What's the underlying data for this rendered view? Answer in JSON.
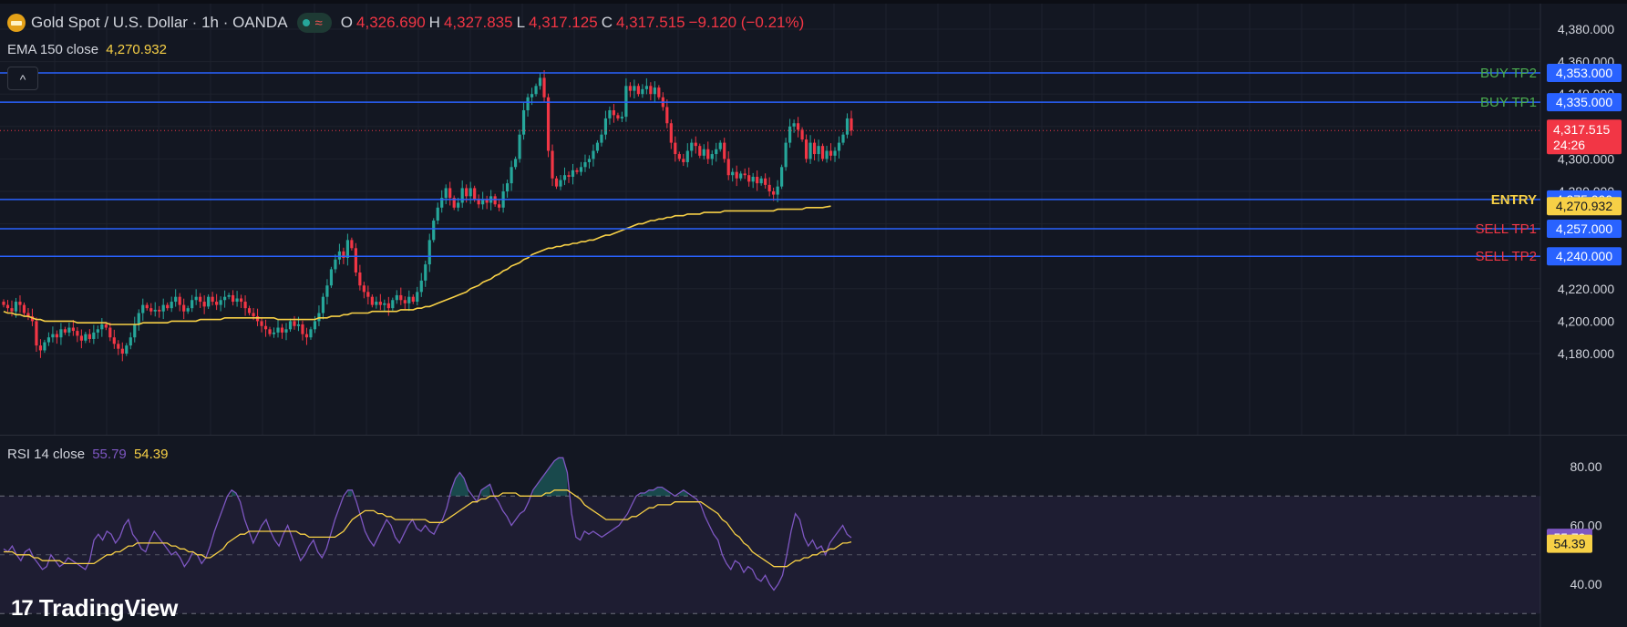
{
  "header": {
    "title": "Gold Spot / U.S. Dollar · 1h · OANDA",
    "market_icon": "wave-icon",
    "ohlc": [
      {
        "key": "O",
        "value": "4,326.690"
      },
      {
        "key": "H",
        "value": "4,327.835"
      },
      {
        "key": "L",
        "value": "4,317.125"
      },
      {
        "key": "C",
        "value": "4,317.515"
      }
    ],
    "change": "−9.120 (−0.21%)"
  },
  "ema": {
    "label": "EMA 150 close",
    "value": "4,270.932"
  },
  "collapse_icon": "chevron-up-icon",
  "rsi": {
    "label": "RSI 14 close",
    "value": "55.79",
    "ma_value": "54.39"
  },
  "watermark": "TradingView",
  "colors": {
    "background": "#131722",
    "up": "#26a69a",
    "down": "#f23645",
    "level_line": "#2962ff",
    "ema": "#f7d046",
    "rsi": "#7e57c2",
    "rsi_ma": "#f7d046",
    "buy_label": "#4caf50",
    "sell_label": "#f23645",
    "entry_label": "#f7d046"
  },
  "chart_data": [
    {
      "type": "candlestick",
      "title": "Gold Spot / U.S. Dollar · 1h · OANDA",
      "ylim": [
        4165,
        4395
      ],
      "price_scale_ticks": [
        4180,
        4200,
        4220,
        4240,
        4260,
        4280,
        4300,
        4320,
        4340,
        4360,
        4380
      ],
      "price_scale_labels": [
        "4,180.000",
        "4,200.000",
        "4,220.000",
        "4,240.000",
        "4,260.000",
        "4,280.000",
        "4,300.000",
        "4,320.000",
        "4,340.000",
        "4,360.000",
        "4,380.000"
      ],
      "last_price": {
        "value": 4317.515,
        "label": "4,317.515",
        "countdown": "24:26"
      },
      "levels": [
        {
          "name": "BUY TP2",
          "value": 4353,
          "label": "4,353.000",
          "kind": "buy"
        },
        {
          "name": "BUY TP1",
          "value": 4335,
          "label": "4,335.000",
          "kind": "buy"
        },
        {
          "name": "ENTRY",
          "value": 4275,
          "label": "4,275.000",
          "kind": "entry"
        },
        {
          "name": "SELL TP1",
          "value": 4257,
          "label": "4,257.000",
          "kind": "sell"
        },
        {
          "name": "SELL TP2",
          "value": 4240,
          "label": "4,240.000",
          "kind": "sell"
        }
      ],
      "ema_label": "4,270.932",
      "close_path": [
        4210,
        4208,
        4206,
        4212,
        4210,
        4205,
        4203,
        4200,
        4185,
        4182,
        4187,
        4190,
        4192,
        4190,
        4195,
        4193,
        4196,
        4194,
        4191,
        4188,
        4192,
        4189,
        4193,
        4195,
        4198,
        4196,
        4190,
        4186,
        4183,
        4180,
        4185,
        4190,
        4198,
        4205,
        4210,
        4208,
        4206,
        4207,
        4206,
        4210,
        4208,
        4212,
        4215,
        4210,
        4206,
        4208,
        4213,
        4215,
        4212,
        4209,
        4215,
        4212,
        4210,
        4213,
        4215,
        4216,
        4212,
        4214,
        4212,
        4208,
        4205,
        4203,
        4200,
        4197,
        4195,
        4192,
        4193,
        4196,
        4193,
        4195,
        4200,
        4197,
        4198,
        4192,
        4190,
        4195,
        4200,
        4205,
        4215,
        4222,
        4232,
        4238,
        4243,
        4239,
        4250,
        4245,
        4230,
        4222,
        4218,
        4215,
        4210,
        4212,
        4210,
        4211,
        4208,
        4213,
        4216,
        4213,
        4211,
        4215,
        4212,
        4218,
        4225,
        4235,
        4250,
        4262,
        4270,
        4276,
        4282,
        4276,
        4270,
        4273,
        4282,
        4277,
        4282,
        4275,
        4272,
        4275,
        4273,
        4277,
        4272,
        4270,
        4280,
        4285,
        4295,
        4300,
        4315,
        4330,
        4338,
        4340,
        4345,
        4350,
        4338,
        4305,
        4288,
        4283,
        4287,
        4290,
        4289,
        4293,
        4292,
        4295,
        4298,
        4300,
        4305,
        4310,
        4315,
        4325,
        4330,
        4327,
        4325,
        4326,
        4345,
        4342,
        4345,
        4340,
        4343,
        4345,
        4340,
        4344,
        4338,
        4332,
        4322,
        4310,
        4303,
        4300,
        4298,
        4305,
        4310,
        4308,
        4302,
        4306,
        4300,
        4303,
        4306,
        4310,
        4300,
        4290,
        4292,
        4288,
        4291,
        4290,
        4286,
        4289,
        4285,
        4288,
        4284,
        4280,
        4278,
        4283,
        4295,
        4310,
        4320,
        4322,
        4318,
        4312,
        4300,
        4310,
        4303,
        4308,
        4300,
        4305,
        4302,
        4305,
        4310,
        4315,
        4325,
        4317.5
      ],
      "ema_path": [
        4206,
        4205,
        4205,
        4204,
        4204,
        4203,
        4203,
        4202,
        4201,
        4201,
        4200,
        4200,
        4200,
        4200,
        4200,
        4200,
        4200,
        4200,
        4199,
        4199,
        4199,
        4199,
        4199,
        4199,
        4199,
        4199,
        4198,
        4198,
        4198,
        4198,
        4198,
        4198,
        4198,
        4198,
        4199,
        4199,
        4199,
        4199,
        4199,
        4199,
        4199,
        4200,
        4200,
        4200,
        4200,
        4200,
        4200,
        4200,
        4201,
        4201,
        4201,
        4201,
        4201,
        4201,
        4202,
        4202,
        4202,
        4202,
        4202,
        4202,
        4202,
        4202,
        4202,
        4202,
        4202,
        4202,
        4202,
        4201,
        4201,
        4201,
        4201,
        4201,
        4201,
        4201,
        4201,
        4201,
        4201,
        4202,
        4202,
        4202,
        4203,
        4203,
        4203,
        4204,
        4204,
        4205,
        4205,
        4205,
        4205,
        4205,
        4206,
        4206,
        4206,
        4206,
        4206,
        4206,
        4206,
        4207,
        4207,
        4207,
        4207,
        4208,
        4208,
        4209,
        4209,
        4210,
        4211,
        4212,
        4213,
        4214,
        4215,
        4216,
        4217,
        4218,
        4220,
        4221,
        4222,
        4224,
        4225,
        4226,
        4228,
        4229,
        4231,
        4232,
        4234,
        4235,
        4236,
        4238,
        4239,
        4241,
        4242,
        4243,
        4244,
        4245,
        4245,
        4246,
        4246,
        4247,
        4247,
        4248,
        4248,
        4249,
        4249,
        4250,
        4250,
        4251,
        4252,
        4253,
        4253,
        4254,
        4255,
        4256,
        4257,
        4258,
        4259,
        4260,
        4260,
        4261,
        4262,
        4262,
        4263,
        4263,
        4264,
        4264,
        4265,
        4265,
        4265,
        4266,
        4266,
        4266,
        4266,
        4267,
        4267,
        4267,
        4267,
        4267,
        4268,
        4268,
        4268,
        4268,
        4268,
        4268,
        4268,
        4268,
        4268,
        4268,
        4268,
        4268,
        4268,
        4269,
        4269,
        4269,
        4269,
        4269,
        4269,
        4269,
        4270,
        4270,
        4270,
        4270,
        4270,
        4270.5,
        4270.9
      ]
    },
    {
      "type": "line",
      "title": "RSI 14 close",
      "ylim": [
        33,
        85
      ],
      "axis_ticks": [
        40,
        60,
        80
      ],
      "axis_labels": [
        "40.00",
        "60.00",
        "80.00"
      ],
      "bands": [
        30,
        50,
        70
      ],
      "series": [
        {
          "name": "RSI 14 close",
          "last": 55.79,
          "values": [
            52,
            51,
            53,
            50,
            48,
            51,
            52,
            49,
            47,
            45,
            46,
            50,
            48,
            46,
            47,
            49,
            48,
            47,
            46,
            45,
            48,
            55,
            57,
            55,
            58,
            57,
            54,
            56,
            60,
            62,
            57,
            55,
            52,
            51,
            55,
            58,
            56,
            54,
            52,
            50,
            51,
            49,
            46,
            48,
            51,
            50,
            47,
            49,
            53,
            58,
            62,
            66,
            70,
            72,
            71,
            68,
            62,
            58,
            54,
            57,
            60,
            62,
            58,
            55,
            53,
            57,
            60,
            56,
            52,
            48,
            50,
            53,
            55,
            51,
            49,
            52,
            57,
            62,
            66,
            70,
            72,
            72,
            68,
            63,
            58,
            55,
            53,
            56,
            59,
            62,
            60,
            56,
            54,
            57,
            60,
            62,
            59,
            58,
            60,
            58,
            57,
            60,
            62,
            66,
            72,
            76,
            78,
            76,
            72,
            70,
            68,
            72,
            73,
            74,
            70,
            68,
            65,
            63,
            60,
            62,
            64,
            65,
            68,
            72,
            74,
            76,
            78,
            80,
            82,
            83,
            83,
            78,
            64,
            56,
            55,
            58,
            57,
            58,
            57,
            56,
            57,
            58,
            59,
            60,
            62,
            64,
            67,
            70,
            71,
            71,
            72,
            72,
            73,
            73,
            72,
            71,
            70,
            71,
            72,
            71,
            70,
            69,
            67,
            63,
            60,
            57,
            55,
            50,
            47,
            45,
            48,
            47,
            44,
            46,
            45,
            42,
            41,
            43,
            40,
            38,
            40,
            43,
            50,
            58,
            64,
            62,
            56,
            53,
            55,
            52,
            53,
            50,
            54,
            56,
            58,
            60,
            57,
            55.8
          ]
        },
        {
          "name": "RSI MA",
          "last": 54.39,
          "values": [
            51,
            51,
            51,
            50,
            50,
            50,
            50,
            49,
            49,
            48,
            48,
            48,
            48,
            48,
            47,
            47,
            47,
            47,
            47,
            47,
            47,
            47,
            48,
            49,
            50,
            50,
            51,
            51,
            52,
            53,
            53,
            54,
            54,
            54,
            54,
            54,
            54,
            54,
            54,
            53,
            53,
            52,
            52,
            51,
            51,
            50,
            50,
            49,
            49,
            50,
            51,
            52,
            54,
            55,
            56,
            57,
            57,
            58,
            58,
            58,
            58,
            58,
            58,
            58,
            58,
            58,
            58,
            58,
            58,
            57,
            57,
            56,
            56,
            56,
            56,
            56,
            56,
            56,
            57,
            58,
            60,
            62,
            63,
            64,
            65,
            65,
            65,
            64,
            64,
            63,
            63,
            62,
            62,
            62,
            62,
            62,
            62,
            62,
            62,
            61,
            61,
            61,
            61,
            62,
            63,
            64,
            65,
            66,
            67,
            68,
            68,
            69,
            69,
            70,
            70,
            70,
            71,
            71,
            71,
            71,
            70,
            70,
            70,
            70,
            70,
            70,
            71,
            71,
            72,
            72,
            72,
            72,
            71,
            70,
            69,
            67,
            66,
            65,
            64,
            63,
            62,
            62,
            62,
            62,
            62,
            62,
            63,
            63,
            64,
            65,
            66,
            66,
            67,
            67,
            67,
            67,
            68,
            68,
            68,
            68,
            68,
            68,
            68,
            67,
            66,
            65,
            64,
            62,
            61,
            59,
            57,
            56,
            54,
            53,
            51,
            50,
            49,
            48,
            47,
            46,
            46,
            46,
            46,
            47,
            48,
            48,
            49,
            49,
            50,
            50,
            51,
            51,
            52,
            52,
            53,
            54,
            54,
            54.4
          ]
        }
      ]
    }
  ]
}
